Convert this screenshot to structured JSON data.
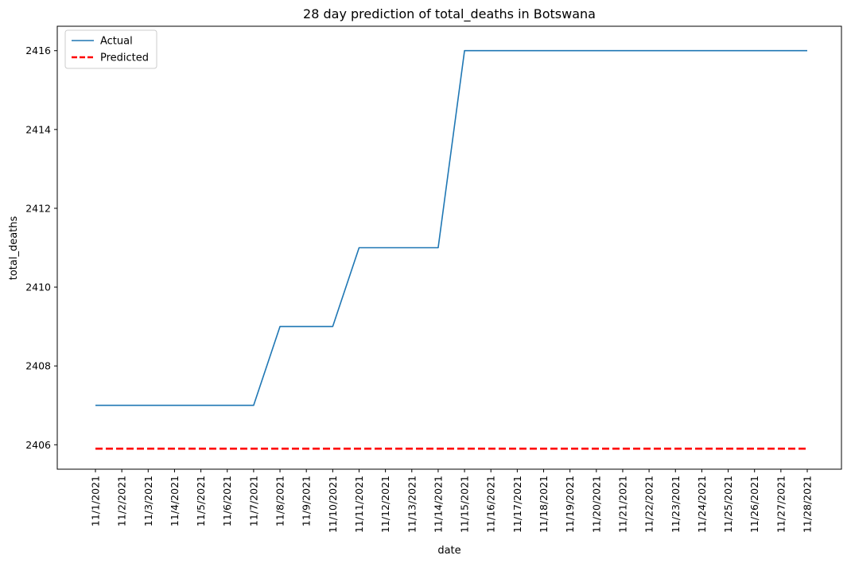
{
  "chart_data": {
    "type": "line",
    "title": "28 day prediction of total_deaths in Botswana",
    "xlabel": "date",
    "ylabel": "total_deaths",
    "ylim": [
      2405.38,
      2416.62
    ],
    "yticks": [
      2406,
      2408,
      2410,
      2412,
      2414,
      2416
    ],
    "grid": false,
    "legend_position": "top-left",
    "categories": [
      "11/1/2021",
      "11/2/2021",
      "11/3/2021",
      "11/4/2021",
      "11/5/2021",
      "11/6/2021",
      "11/7/2021",
      "11/8/2021",
      "11/9/2021",
      "11/10/2021",
      "11/11/2021",
      "11/12/2021",
      "11/13/2021",
      "11/14/2021",
      "11/15/2021",
      "11/16/2021",
      "11/17/2021",
      "11/18/2021",
      "11/19/2021",
      "11/20/2021",
      "11/21/2021",
      "11/22/2021",
      "11/23/2021",
      "11/24/2021",
      "11/25/2021",
      "11/26/2021",
      "11/27/2021",
      "11/28/2021"
    ],
    "series": [
      {
        "name": "Actual",
        "color": "#1f77b4",
        "style": "solid",
        "values": [
          2407,
          2407,
          2407,
          2407,
          2407,
          2407,
          2407,
          2409,
          2409,
          2409,
          2411,
          2411,
          2411,
          2411,
          2416,
          2416,
          2416,
          2416,
          2416,
          2416,
          2416,
          2416,
          2416,
          2416,
          2416,
          2416,
          2416,
          2416
        ]
      },
      {
        "name": "Predicted",
        "color": "#ff0000",
        "style": "dashed",
        "values": [
          2405.9,
          2405.9,
          2405.9,
          2405.9,
          2405.9,
          2405.9,
          2405.9,
          2405.9,
          2405.9,
          2405.9,
          2405.9,
          2405.9,
          2405.9,
          2405.9,
          2405.9,
          2405.9,
          2405.9,
          2405.9,
          2405.9,
          2405.9,
          2405.9,
          2405.9,
          2405.9,
          2405.9,
          2405.9,
          2405.9,
          2405.9,
          2405.9
        ]
      }
    ]
  }
}
